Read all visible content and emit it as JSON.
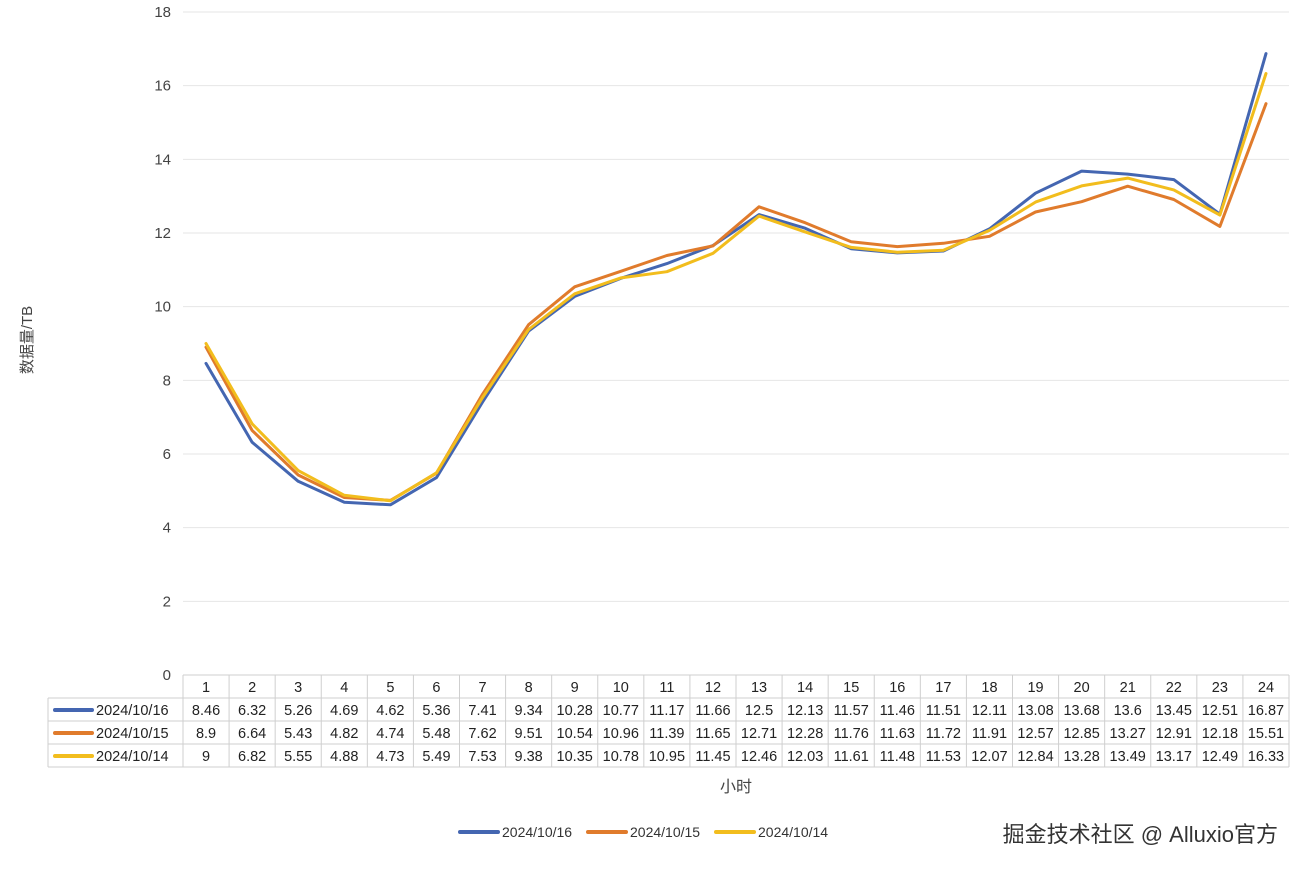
{
  "chart_data": {
    "type": "line",
    "ylabel": "数据量/TB",
    "xlabel": "小时",
    "ylim": [
      0,
      18
    ],
    "yticks": [
      0,
      2,
      4,
      6,
      8,
      10,
      12,
      14,
      16,
      18
    ],
    "grid": true,
    "legend": "bottom",
    "categories": [
      "1",
      "2",
      "3",
      "4",
      "5",
      "6",
      "7",
      "8",
      "9",
      "10",
      "11",
      "12",
      "13",
      "14",
      "15",
      "16",
      "17",
      "18",
      "19",
      "20",
      "21",
      "22",
      "23",
      "24"
    ],
    "series": [
      {
        "name": "2024/10/16",
        "color": "#4466b1",
        "values": [
          8.46,
          6.32,
          5.26,
          4.69,
          4.62,
          5.36,
          7.41,
          9.34,
          10.28,
          10.77,
          11.17,
          11.66,
          12.5,
          12.13,
          11.57,
          11.46,
          11.51,
          12.11,
          13.08,
          13.68,
          13.6,
          13.45,
          12.51,
          16.87
        ]
      },
      {
        "name": "2024/10/15",
        "color": "#e07b2c",
        "values": [
          8.9,
          6.64,
          5.43,
          4.82,
          4.74,
          5.48,
          7.62,
          9.51,
          10.54,
          10.96,
          11.39,
          11.65,
          12.71,
          12.28,
          11.76,
          11.63,
          11.72,
          11.91,
          12.57,
          12.85,
          13.27,
          12.91,
          12.18,
          15.51
        ]
      },
      {
        "name": "2024/10/14",
        "color": "#f2bd1d",
        "values": [
          9,
          6.82,
          5.55,
          4.88,
          4.73,
          5.49,
          7.53,
          9.38,
          10.35,
          10.78,
          10.95,
          11.45,
          12.46,
          12.03,
          11.61,
          11.48,
          11.53,
          12.07,
          12.84,
          13.28,
          13.49,
          13.17,
          12.49,
          16.33
        ]
      }
    ],
    "table": {
      "rows": [
        [
          "8.46",
          "6.32",
          "5.26",
          "4.69",
          "4.62",
          "5.36",
          "7.41",
          "9.34",
          "10.28",
          "10.77",
          "11.17",
          "11.66",
          "12.5",
          "12.13",
          "11.57",
          "11.46",
          "11.51",
          "12.11",
          "13.08",
          "13.68",
          "13.6",
          "13.45",
          "12.51",
          "16.87"
        ],
        [
          "8.9",
          "6.64",
          "5.43",
          "4.82",
          "4.74",
          "5.48",
          "7.62",
          "9.51",
          "10.54",
          "10.96",
          "11.39",
          "11.65",
          "12.71",
          "12.28",
          "11.76",
          "11.63",
          "11.72",
          "11.91",
          "12.57",
          "12.85",
          "13.27",
          "12.91",
          "12.18",
          "15.51"
        ],
        [
          "9",
          "6.82",
          "5.55",
          "4.88",
          "4.73",
          "5.49",
          "7.53",
          "9.38",
          "10.35",
          "10.78",
          "10.95",
          "11.45",
          "12.46",
          "12.03",
          "11.61",
          "11.48",
          "11.53",
          "12.07",
          "12.84",
          "13.28",
          "13.49",
          "13.17",
          "12.49",
          "16.33"
        ]
      ]
    }
  },
  "watermark": "掘金技术社区 @ Alluxio官方"
}
